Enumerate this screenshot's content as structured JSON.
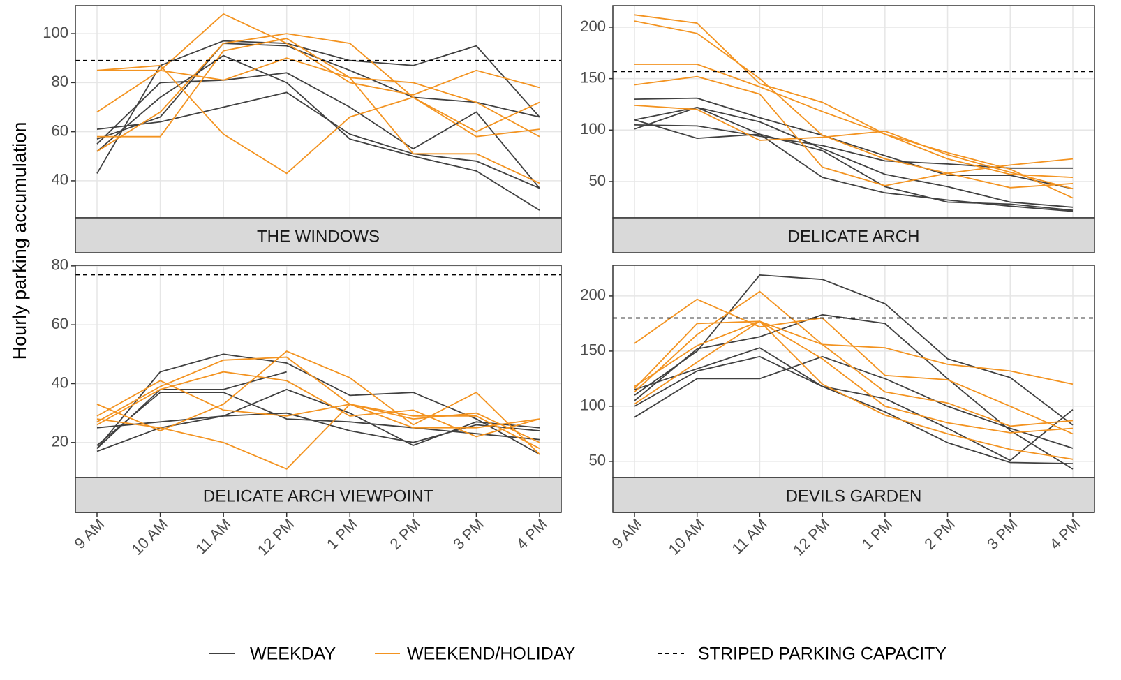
{
  "chart_data": {
    "type": "line",
    "y_label": "Hourly parking accumulation",
    "x": [
      "9 AM",
      "10 AM",
      "11 AM",
      "12 PM",
      "1 PM",
      "2 PM",
      "3 PM",
      "4 PM"
    ],
    "weekday": {
      "name": "WEEKDAY",
      "color": "#404040"
    },
    "weekend": {
      "name": "WEEKEND/HOLIDAY",
      "color": "#f39320"
    },
    "capacity_label": "STRIPED PARKING CAPACITY",
    "grid": true,
    "panels": [
      {
        "title": "THE WINDOWS",
        "ylim": [
          24.9,
          111.4
        ],
        "yticks": [
          40,
          60,
          80,
          100
        ],
        "capacity": 89,
        "weekday": [
          [
            43,
            87,
            97,
            96,
            89,
            87,
            95,
            66
          ],
          [
            55,
            80,
            81,
            84,
            70,
            53,
            68,
            37
          ],
          [
            61,
            64,
            70,
            76,
            59,
            51,
            48,
            37
          ],
          [
            52,
            74,
            91,
            80,
            57,
            50,
            44,
            28
          ],
          [
            57,
            66,
            96,
            95,
            85,
            74,
            72,
            66
          ]
        ],
        "weekend": [
          [
            68,
            85,
            108,
            96,
            80,
            75,
            85,
            78
          ],
          [
            85,
            85,
            81,
            90,
            82,
            80,
            72,
            58
          ],
          [
            52,
            68,
            96,
            100,
            96,
            74,
            58,
            61
          ],
          [
            58,
            58,
            93,
            98,
            82,
            51,
            51,
            39
          ],
          [
            85,
            87,
            59,
            43,
            66,
            74,
            60,
            72
          ]
        ]
      },
      {
        "title": "DELICATE ARCH",
        "ylim": [
          14.7,
          221
        ],
        "yticks": [
          50,
          100,
          150,
          200
        ],
        "capacity": 157,
        "weekday": [
          [
            130,
            131,
            112,
            95,
            75,
            56,
            56,
            43
          ],
          [
            110,
            122,
            108,
            82,
            57,
            45,
            30,
            25
          ],
          [
            101,
            122,
            96,
            80,
            45,
            30,
            28,
            22
          ],
          [
            110,
            92,
            96,
            54,
            39,
            32,
            26,
            21
          ],
          [
            105,
            104,
            94,
            85,
            70,
            67,
            63,
            63
          ]
        ],
        "weekend": [
          [
            212,
            204,
            145,
            127,
            96,
            78,
            62,
            34
          ],
          [
            206,
            194,
            150,
            95,
            72,
            58,
            44,
            48
          ],
          [
            164,
            164,
            142,
            118,
            96,
            72,
            57,
            54
          ],
          [
            144,
            152,
            135,
            64,
            46,
            58,
            66,
            72
          ],
          [
            124,
            120,
            90,
            93,
            99,
            76,
            59,
            43
          ]
        ]
      },
      {
        "title": "DELICATE ARCH VIEWPOINT",
        "ylim": [
          8.1,
          80.2
        ],
        "yticks": [
          20,
          40,
          60,
          80
        ],
        "capacity": 77,
        "weekday": [
          [
            18,
            44,
            50,
            47,
            36,
            37,
            28,
            16
          ],
          [
            19,
            37,
            37,
            28,
            27,
            25,
            23,
            21
          ],
          [
            17,
            25,
            29,
            30,
            24,
            20,
            26,
            24
          ],
          [
            25,
            27,
            29,
            38,
            30,
            19,
            27,
            25
          ],
          [
            18,
            38,
            38,
            44,
            null,
            null,
            null,
            null
          ]
        ],
        "weekend": [
          [
            33,
            24,
            33,
            51,
            42,
            26,
            37,
            16
          ],
          [
            27,
            39,
            48,
            49,
            33,
            28,
            30,
            20
          ],
          [
            26,
            38,
            44,
            41,
            29,
            31,
            22,
            28
          ],
          [
            28,
            25,
            20,
            11,
            33,
            25,
            25,
            28
          ],
          [
            29,
            41,
            31,
            29,
            33,
            29,
            29,
            18
          ]
        ]
      },
      {
        "title": "DEVILS GARDEN",
        "ylim": [
          35.4,
          227.8
        ],
        "yticks": [
          50,
          100,
          150,
          200
        ],
        "capacity": 180,
        "weekday": [
          [
            110,
            150,
            219,
            215,
            193,
            143,
            126,
            83
          ],
          [
            100,
            132,
            145,
            118,
            95,
            67,
            49,
            48
          ],
          [
            90,
            125,
            125,
            145,
            125,
            100,
            80,
            62
          ],
          [
            105,
            152,
            163,
            183,
            175,
            125,
            78,
            43
          ],
          [
            115,
            134,
            153,
            118,
            107,
            80,
            51,
            97
          ]
        ],
        "weekend": [
          [
            157,
            197,
            172,
            180,
            128,
            124,
            100,
            75
          ],
          [
            116,
            175,
            177,
            120,
            92,
            75,
            61,
            52
          ],
          [
            113,
            165,
            204,
            156,
            153,
            138,
            132,
            120
          ],
          [
            102,
            140,
            177,
            156,
            113,
            103,
            82,
            87
          ],
          [
            118,
            155,
            177,
            143,
            100,
            85,
            76,
            80
          ]
        ]
      }
    ]
  }
}
